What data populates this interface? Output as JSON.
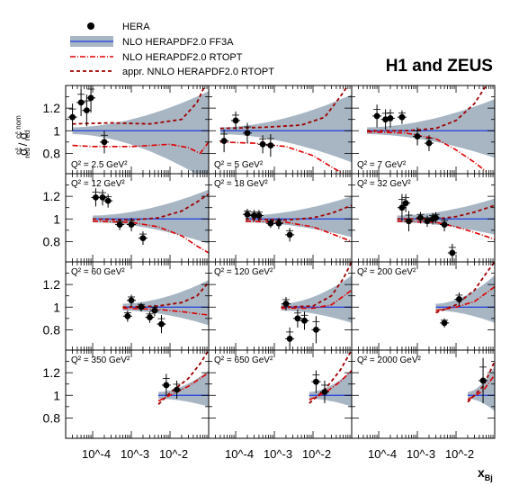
{
  "header": {
    "title": "H1 and ZEUS"
  },
  "legend": {
    "items": [
      {
        "label": "HERA",
        "style": "points"
      },
      {
        "label": "NLO HERAPDF2.0 FF3A",
        "style": "band"
      },
      {
        "label": "NLO HERAPDF2.0 RTOPT",
        "style": "dashdot"
      },
      {
        "label": "appr. NNLO HERAPDF2.0 RTOPT",
        "style": "dashed"
      }
    ]
  },
  "colors": {
    "band": "#a8b6c4",
    "band_line": "#1f3ee0",
    "nlo_rtopt": "#e00000",
    "nnlo_rtopt": "#a00000",
    "points": "#000000"
  },
  "axes": {
    "ylabel": "σ_red^{cc̄} / σ_red^{cc̄ nom}",
    "xlabel": "x_Bj",
    "y_ticks": [
      "0.8",
      "1",
      "1.2"
    ],
    "x_ticks": [
      "10^-4",
      "10^-3",
      "10^-2"
    ]
  },
  "chart_data": {
    "type": "scatter",
    "xscale": "log",
    "xlim": [
      2e-05,
      0.1
    ],
    "ylim": [
      0.62,
      1.4
    ],
    "panels": [
      {
        "label": "Q² = 2.5 GeV²",
        "x": [
          3e-05,
          5e-05,
          7e-05,
          9e-05,
          0.0002
        ],
        "y": [
          1.12,
          1.25,
          1.18,
          1.29,
          0.9
        ],
        "err": [
          0.12,
          0.12,
          0.14,
          0.13,
          0.1
        ],
        "band": {
          "x0": 3e-05,
          "x1": 0.1,
          "lo_end": 0.55,
          "hi_end": 1.35
        },
        "nlo": [
          [
            3e-05,
            0.87
          ],
          [
            0.0001,
            0.86
          ],
          [
            0.001,
            0.86
          ],
          [
            0.01,
            0.88
          ],
          [
            0.03,
            0.85
          ],
          [
            0.06,
            0.8
          ],
          [
            0.1,
            0.9
          ]
        ],
        "nnlo": [
          [
            3e-05,
            1.06
          ],
          [
            0.0003,
            1.07
          ],
          [
            0.003,
            1.06
          ],
          [
            0.02,
            1.1
          ],
          [
            0.05,
            1.25
          ],
          [
            0.08,
            1.4
          ]
        ]
      },
      {
        "label": "Q² = 5 GeV²",
        "x": [
          5e-05,
          0.0001,
          0.0002,
          0.0005,
          0.0008
        ],
        "y": [
          0.91,
          1.09,
          0.98,
          0.88,
          0.87
        ],
        "err": [
          0.1,
          0.08,
          0.09,
          0.08,
          0.1
        ],
        "band": {
          "x0": 4e-05,
          "x1": 0.1,
          "lo_end": 0.72,
          "hi_end": 1.32
        },
        "nlo": [
          [
            4e-05,
            0.9
          ],
          [
            0.0003,
            0.89
          ],
          [
            0.002,
            0.86
          ],
          [
            0.01,
            0.78
          ],
          [
            0.03,
            0.68
          ],
          [
            0.06,
            0.62
          ]
        ],
        "nnlo": [
          [
            4e-05,
            1.02
          ],
          [
            0.0005,
            1.03
          ],
          [
            0.005,
            1.05
          ],
          [
            0.02,
            1.12
          ],
          [
            0.05,
            1.3
          ],
          [
            0.08,
            1.4
          ]
        ]
      },
      {
        "label": "Q² = 7 GeV²",
        "x": [
          9e-05,
          0.00015,
          0.0002,
          0.0004,
          0.001,
          0.002
        ],
        "y": [
          1.13,
          1.1,
          1.11,
          1.12,
          0.95,
          0.89
        ],
        "err": [
          0.1,
          0.09,
          0.08,
          0.06,
          0.08,
          0.07
        ],
        "band": {
          "x0": 5e-05,
          "x1": 0.1,
          "lo_end": 0.76,
          "hi_end": 1.28
        },
        "nlo": [
          [
            5e-05,
            0.99
          ],
          [
            0.0005,
            0.98
          ],
          [
            0.003,
            0.93
          ],
          [
            0.01,
            0.83
          ],
          [
            0.03,
            0.72
          ],
          [
            0.06,
            0.64
          ]
        ],
        "nnlo": [
          [
            5e-05,
            1.0
          ],
          [
            0.0005,
            1.0
          ],
          [
            0.003,
            1.02
          ],
          [
            0.01,
            1.09
          ],
          [
            0.03,
            1.24
          ],
          [
            0.06,
            1.4
          ]
        ]
      },
      {
        "label": "Q² = 12 GeV²",
        "x": [
          0.00012,
          0.00018,
          0.00025,
          0.0005,
          0.001,
          0.002
        ],
        "y": [
          1.19,
          1.19,
          1.16,
          0.95,
          0.95,
          0.83
        ],
        "err": [
          0.08,
          0.07,
          0.06,
          0.05,
          0.06,
          0.06
        ],
        "band": {
          "x0": 0.0001,
          "x1": 0.1,
          "lo_end": 0.78,
          "hi_end": 1.26
        },
        "nlo": [
          [
            0.0001,
            0.98
          ],
          [
            0.001,
            0.97
          ],
          [
            0.005,
            0.93
          ],
          [
            0.02,
            0.85
          ],
          [
            0.05,
            0.76
          ],
          [
            0.1,
            0.7
          ]
        ],
        "nnlo": [
          [
            0.0001,
            1.0
          ],
          [
            0.001,
            0.99
          ],
          [
            0.005,
            1.01
          ],
          [
            0.02,
            1.07
          ],
          [
            0.05,
            1.15
          ],
          [
            0.1,
            1.22
          ]
        ]
      },
      {
        "label": "Q² = 18 GeV²",
        "x": [
          0.0002,
          0.0003,
          0.0004,
          0.0008,
          0.0013,
          0.0025
        ],
        "y": [
          1.04,
          1.03,
          1.03,
          0.96,
          0.96,
          0.86
        ],
        "err": [
          0.05,
          0.05,
          0.05,
          0.04,
          0.05,
          0.06
        ],
        "band": {
          "x0": 0.00018,
          "x1": 0.1,
          "lo_end": 0.84,
          "hi_end": 1.2
        },
        "nlo": [
          [
            0.00018,
            0.98
          ],
          [
            0.002,
            0.97
          ],
          [
            0.01,
            0.93
          ],
          [
            0.03,
            0.87
          ],
          [
            0.1,
            0.8
          ]
        ],
        "nnlo": [
          [
            0.00018,
            1.0
          ],
          [
            0.002,
            0.99
          ],
          [
            0.01,
            1.01
          ],
          [
            0.03,
            1.05
          ],
          [
            0.1,
            1.12
          ]
        ]
      },
      {
        "label": "Q² = 32 GeV²",
        "x": [
          0.0004,
          0.0005,
          0.0006,
          0.0012,
          0.0018,
          0.0025,
          0.003,
          0.005,
          0.008
        ],
        "y": [
          1.1,
          1.14,
          0.98,
          1.01,
          0.98,
          1.0,
          1.01,
          0.95,
          0.7
        ],
        "err": [
          0.12,
          0.08,
          0.09,
          0.05,
          0.05,
          0.05,
          0.05,
          0.06,
          0.08
        ],
        "band": {
          "x0": 0.0003,
          "x1": 0.1,
          "lo_end": 0.86,
          "hi_end": 1.18
        },
        "nlo": [
          [
            0.0003,
            0.98
          ],
          [
            0.003,
            0.97
          ],
          [
            0.01,
            0.93
          ],
          [
            0.03,
            0.88
          ],
          [
            0.1,
            0.82
          ]
        ],
        "nnlo": [
          [
            0.0003,
            1.0
          ],
          [
            0.003,
            1.0
          ],
          [
            0.01,
            1.02
          ],
          [
            0.03,
            1.06
          ],
          [
            0.1,
            1.12
          ]
        ]
      },
      {
        "label": "Q² = 60 GeV²",
        "x": [
          0.0008,
          0.001,
          0.0018,
          0.003,
          0.004,
          0.006
        ],
        "y": [
          0.92,
          1.06,
          1.0,
          0.91,
          0.97,
          0.85
        ],
        "err": [
          0.05,
          0.05,
          0.04,
          0.05,
          0.05,
          0.08
        ],
        "band": {
          "x0": 0.0006,
          "x1": 0.1,
          "lo_end": 0.84,
          "hi_end": 1.24
        },
        "nlo": [
          [
            0.0006,
            0.99
          ],
          [
            0.005,
            0.98
          ],
          [
            0.02,
            0.96
          ],
          [
            0.1,
            0.93
          ]
        ],
        "nnlo": [
          [
            0.0006,
            1.0
          ],
          [
            0.005,
            1.01
          ],
          [
            0.02,
            1.04
          ],
          [
            0.05,
            1.1
          ],
          [
            0.1,
            1.22
          ]
        ]
      },
      {
        "label": "Q² = 120 GeV²",
        "x": [
          0.002,
          0.0025,
          0.004,
          0.006,
          0.012
        ],
        "y": [
          1.03,
          0.72,
          0.9,
          0.88,
          0.8
        ],
        "err": [
          0.06,
          0.1,
          0.08,
          0.08,
          0.12
        ],
        "band": {
          "x0": 0.0015,
          "x1": 0.1,
          "lo_end": 0.86,
          "hi_end": 1.28
        },
        "nlo": [
          [
            0.0015,
            0.99
          ],
          [
            0.01,
            0.99
          ],
          [
            0.03,
            1.02
          ],
          [
            0.1,
            1.15
          ]
        ],
        "nnlo": [
          [
            0.0015,
            1.0
          ],
          [
            0.01,
            1.01
          ],
          [
            0.03,
            1.1
          ],
          [
            0.06,
            1.25
          ],
          [
            0.1,
            1.4
          ]
        ]
      },
      {
        "label": "Q² = 200 GeV²",
        "x": [
          0.005,
          0.012
        ],
        "y": [
          0.86,
          1.07
        ],
        "err": [
          0.04,
          0.06
        ],
        "band": {
          "x0": 0.003,
          "x1": 0.1,
          "lo_end": 0.86,
          "hi_end": 1.28
        },
        "nlo": [
          [
            0.003,
            0.97
          ],
          [
            0.01,
            1.0
          ],
          [
            0.03,
            1.05
          ],
          [
            0.1,
            1.18
          ]
        ],
        "nnlo": [
          [
            0.003,
            0.95
          ],
          [
            0.01,
            1.02
          ],
          [
            0.03,
            1.15
          ],
          [
            0.06,
            1.3
          ],
          [
            0.1,
            1.4
          ]
        ]
      },
      {
        "label": "Q² = 350 GeV²",
        "x": [
          0.008,
          0.015
        ],
        "y": [
          1.09,
          1.05
        ],
        "err": [
          0.1,
          0.08
        ],
        "band": {
          "x0": 0.005,
          "x1": 0.1,
          "lo_end": 0.9,
          "hi_end": 1.22
        },
        "nlo": [
          [
            0.005,
            0.95
          ],
          [
            0.01,
            1.0
          ],
          [
            0.03,
            1.08
          ],
          [
            0.1,
            1.2
          ]
        ],
        "nnlo": [
          [
            0.005,
            0.92
          ],
          [
            0.01,
            1.02
          ],
          [
            0.03,
            1.15
          ],
          [
            0.06,
            1.28
          ],
          [
            0.1,
            1.4
          ]
        ]
      },
      {
        "label": "Q² = 650 GeV²",
        "x": [
          0.012,
          0.02
        ],
        "y": [
          1.12,
          1.03
        ],
        "err": [
          0.1,
          0.1
        ],
        "band": {
          "x0": 0.008,
          "x1": 0.1,
          "lo_end": 0.9,
          "hi_end": 1.22
        },
        "nlo": [
          [
            0.008,
            0.96
          ],
          [
            0.02,
            1.02
          ],
          [
            0.05,
            1.12
          ],
          [
            0.1,
            1.22
          ]
        ],
        "nnlo": [
          [
            0.008,
            0.93
          ],
          [
            0.02,
            1.05
          ],
          [
            0.05,
            1.22
          ],
          [
            0.1,
            1.4
          ]
        ]
      },
      {
        "label": "Q² = 2000 GeV²",
        "x": [
          0.05
        ],
        "y": [
          1.13
        ],
        "err": [
          0.2
        ],
        "band": {
          "x0": 0.02,
          "x1": 0.1,
          "lo_end": 0.86,
          "hi_end": 1.26
        },
        "nlo": [
          [
            0.02,
            0.96
          ],
          [
            0.05,
            1.04
          ],
          [
            0.1,
            1.18
          ]
        ],
        "nnlo": [
          [
            0.02,
            0.94
          ],
          [
            0.05,
            1.08
          ],
          [
            0.1,
            1.3
          ]
        ]
      }
    ]
  }
}
